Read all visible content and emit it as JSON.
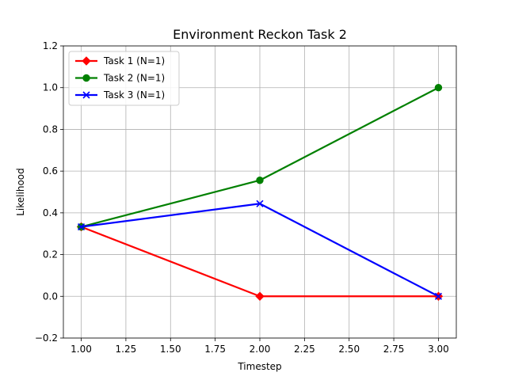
{
  "chart_data": {
    "type": "line",
    "title": "Environment Reckon Task 2",
    "xlabel": "Timestep",
    "ylabel": "Likelihood",
    "xlim": [
      0.9,
      3.1
    ],
    "ylim": [
      -0.2,
      1.2
    ],
    "xticks": [
      1.0,
      1.25,
      1.5,
      1.75,
      2.0,
      2.25,
      2.5,
      2.75,
      3.0
    ],
    "xtick_labels": [
      "1.00",
      "1.25",
      "1.50",
      "1.75",
      "2.00",
      "2.25",
      "2.50",
      "2.75",
      "3.00"
    ],
    "yticks": [
      -0.2,
      0.0,
      0.2,
      0.4,
      0.6,
      0.8,
      1.0,
      1.2
    ],
    "ytick_labels": [
      "−0.2",
      "0.0",
      "0.2",
      "0.4",
      "0.6",
      "0.8",
      "1.0",
      "1.2"
    ],
    "grid": true,
    "legend_position": "top-left",
    "series": [
      {
        "name": "Task 1 (N=1)",
        "color": "#ff0000",
        "marker": "diamond",
        "x": [
          1,
          2,
          3
        ],
        "y": [
          0.333,
          0.0,
          0.0
        ]
      },
      {
        "name": "Task 2 (N=1)",
        "color": "#008000",
        "marker": "circle",
        "x": [
          1,
          2,
          3
        ],
        "y": [
          0.333,
          0.556,
          1.0
        ]
      },
      {
        "name": "Task 3 (N=1)",
        "color": "#0000ff",
        "marker": "x",
        "x": [
          1,
          2,
          3
        ],
        "y": [
          0.333,
          0.444,
          0.0
        ]
      }
    ]
  }
}
